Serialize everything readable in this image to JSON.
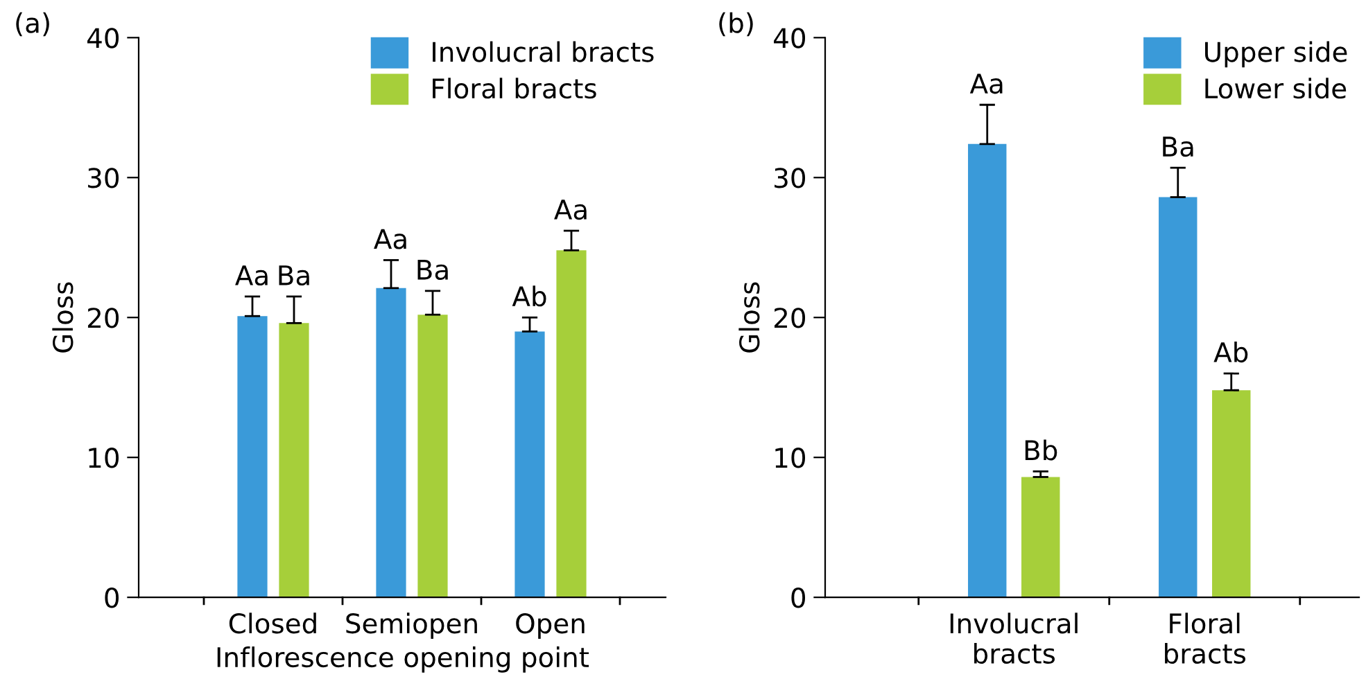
{
  "chart_data": [
    {
      "type": "bar",
      "categories": [
        "Closed",
        "Semiopen",
        "Open"
      ],
      "xlabel": "Inflorescence opening point",
      "ylabel": "Gloss",
      "ylim": [
        0,
        40
      ],
      "yticks": [
        0,
        10,
        20,
        30,
        40
      ],
      "legend": "top right",
      "grid": false,
      "annotations": [
        "(a)"
      ],
      "series": [
        {
          "name": "Involucral bracts",
          "color": "#3a9ad9",
          "values": [
            20.1,
            22.1,
            19.0
          ],
          "errors": [
            [
              20.1,
              21.5
            ],
            [
              22.1,
              24.1
            ],
            [
              19.0,
              20.0
            ]
          ],
          "value_labels": [
            "Aa",
            "Aa",
            "Ab"
          ]
        },
        {
          "name": "Floral bracts",
          "color": "#a6cf3a",
          "values": [
            19.6,
            20.2,
            24.8
          ],
          "errors": [
            [
              19.6,
              21.5
            ],
            [
              20.2,
              21.9
            ],
            [
              24.8,
              26.2
            ]
          ],
          "value_labels": [
            "Ba",
            "Ba",
            "Aa"
          ]
        }
      ]
    },
    {
      "type": "bar",
      "categories": [
        "Involucral\nbracts",
        "Floral\nbracts"
      ],
      "ylabel": "Gloss",
      "ylim": [
        0,
        40
      ],
      "yticks": [
        0,
        10,
        20,
        30,
        40
      ],
      "legend": "top right",
      "grid": false,
      "annotations": [
        "(b)"
      ],
      "series": [
        {
          "name": "Upper side",
          "color": "#3a9ad9",
          "values": [
            32.4,
            28.6
          ],
          "errors": [
            [
              32.4,
              35.2
            ],
            [
              28.6,
              30.7
            ]
          ],
          "value_labels": [
            "Aa",
            "Ba"
          ]
        },
        {
          "name": "Lower side",
          "color": "#a6cf3a",
          "values": [
            8.6,
            14.8
          ],
          "errors": [
            [
              8.6,
              9.0
            ],
            [
              14.8,
              16.0
            ]
          ],
          "value_labels": [
            "Bb",
            "Ab"
          ]
        }
      ]
    }
  ]
}
